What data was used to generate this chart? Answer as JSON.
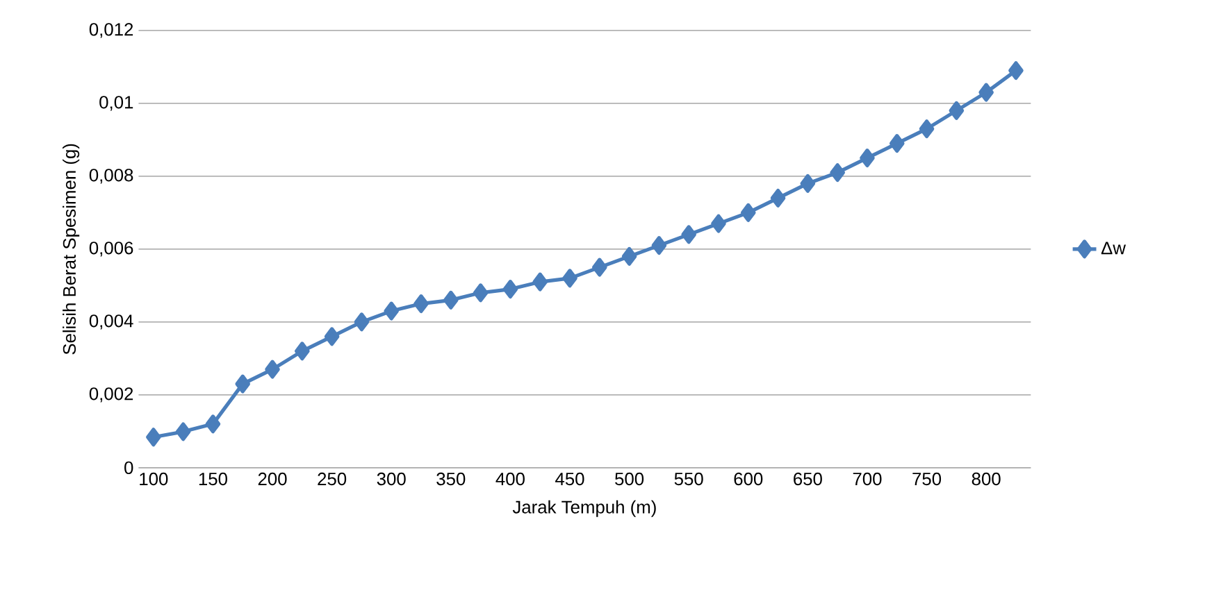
{
  "chart_data": {
    "type": "line",
    "xlabel": "Jarak Tempuh (m)",
    "ylabel": "Selisih Berat Spesimen (g)",
    "categories": [
      "100",
      null,
      "150",
      null,
      "200",
      null,
      "250",
      null,
      "300",
      null,
      "350",
      null,
      "400",
      null,
      "450",
      null,
      "500",
      null,
      "550",
      null,
      "600",
      null,
      "650",
      null,
      "700",
      null,
      "750",
      null,
      "800",
      null
    ],
    "series": [
      {
        "name": "Δw",
        "color": "#4a7ebb",
        "values": [
          0.00084,
          0.00099,
          0.0012,
          0.0023,
          0.0027,
          0.0032,
          0.0036,
          0.004,
          0.0043,
          0.0045,
          0.0046,
          0.0048,
          0.0049,
          0.0051,
          0.0052,
          0.0055,
          0.0058,
          0.0061,
          0.0064,
          0.0067,
          0.007,
          0.0074,
          0.0078,
          0.0081,
          0.0085,
          0.0089,
          0.0093,
          0.0098,
          0.0103,
          0.0109
        ]
      }
    ],
    "ylim": [
      0,
      0.012
    ],
    "yticks": [
      {
        "value": 0,
        "label": "0"
      },
      {
        "value": 0.002,
        "label": "0,002"
      },
      {
        "value": 0.004,
        "label": "0,004"
      },
      {
        "value": 0.006,
        "label": "0,006"
      },
      {
        "value": 0.008,
        "label": "0,008"
      },
      {
        "value": 0.01,
        "label": "0,01"
      },
      {
        "value": 0.012,
        "label": "0,012"
      }
    ],
    "grid": "y",
    "legend": "right",
    "marker": "diamond",
    "line_style": "solid"
  }
}
